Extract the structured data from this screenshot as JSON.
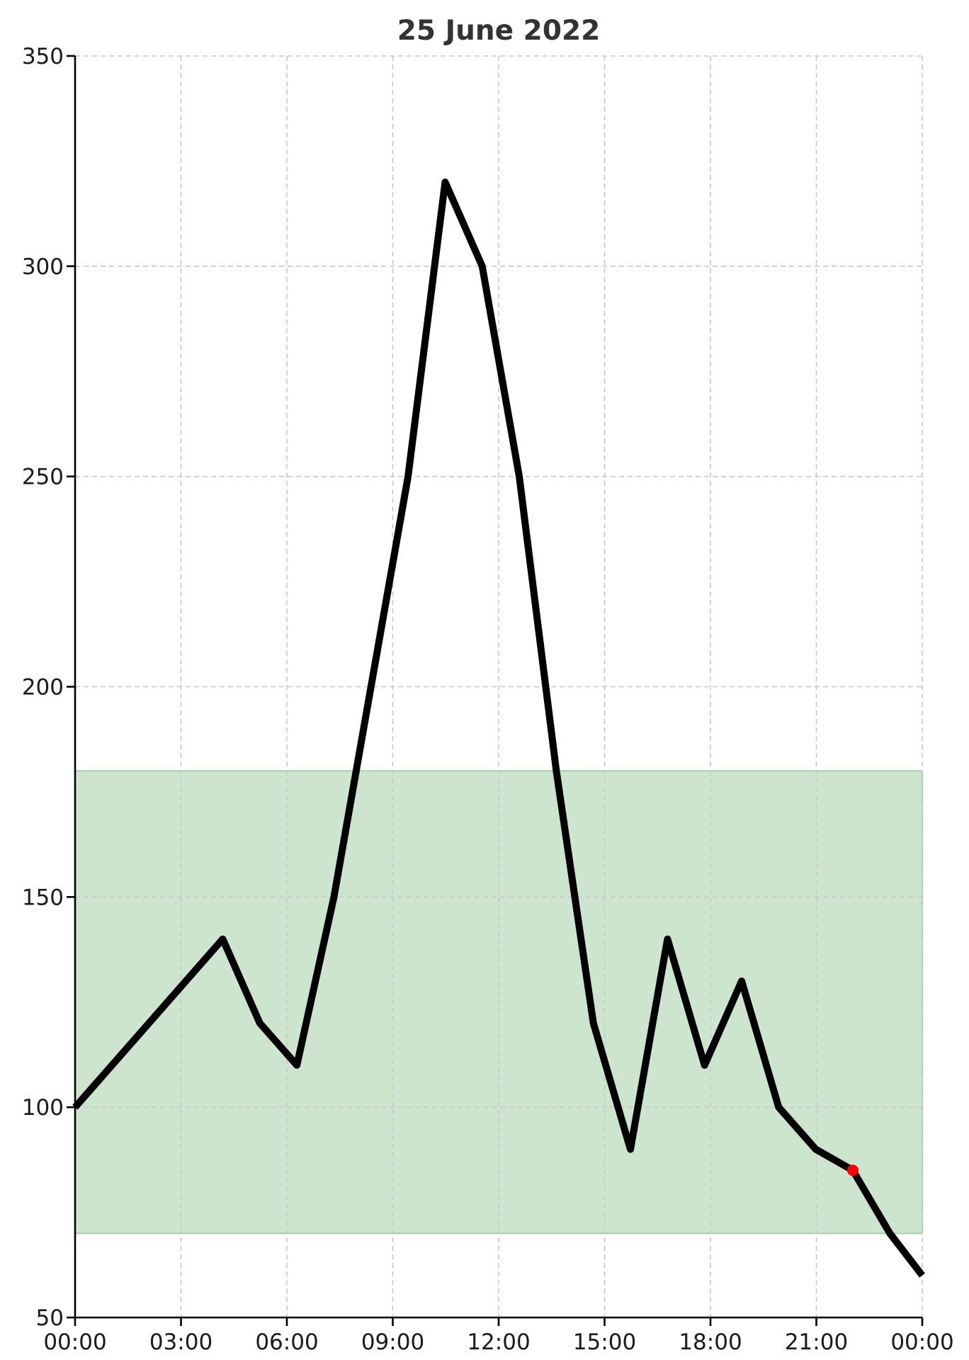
{
  "chart_data": {
    "type": "line",
    "title": "25 June 2022",
    "xlabel": "",
    "ylabel": "",
    "x_ticks": [
      "00:00",
      "03:00",
      "06:00",
      "09:00",
      "12:00",
      "15:00",
      "18:00",
      "21:00",
      "00:00"
    ],
    "xlim": [
      "2022-06-25 00:00",
      "2022-06-26 00:00"
    ],
    "ylim": [
      50,
      350
    ],
    "y_ticks": [
      50,
      100,
      150,
      200,
      250,
      300,
      350
    ],
    "grid": true,
    "target_range": {
      "low": 70,
      "high": 180,
      "color": "#cde4ce",
      "edge_color": "#a9cfab"
    },
    "series": [
      {
        "color": "#000000",
        "x": [
          "00:00",
          "04:11",
          "05:14",
          "06:17",
          "07:20",
          "08:23",
          "09:26",
          "10:29",
          "11:32",
          "12:35",
          "13:38",
          "14:41",
          "15:44",
          "16:47",
          "17:50",
          "18:53",
          "19:56",
          "20:59",
          "22:02",
          "23:05",
          "24:00"
        ],
        "y": [
          100,
          140,
          120,
          110,
          150,
          200,
          250,
          320,
          300,
          250,
          180,
          120,
          90,
          140,
          110,
          130,
          100,
          90,
          85,
          70,
          60
        ]
      }
    ],
    "highlight_point": {
      "x": "22:02",
      "y": 85,
      "color": "#ff0000"
    }
  }
}
